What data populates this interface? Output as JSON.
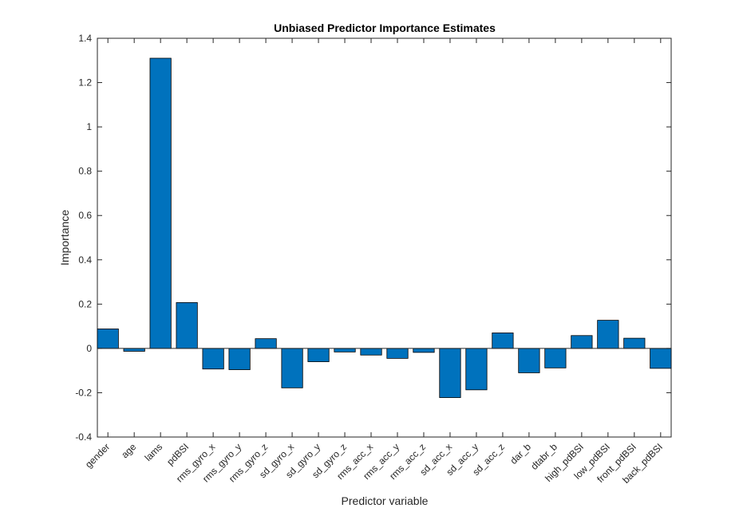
{
  "chart_data": {
    "type": "bar",
    "title": "Unbiased Predictor Importance Estimates",
    "xlabel": "Predictor variable",
    "ylabel": "Importance",
    "ylim": [
      -0.4,
      1.4
    ],
    "yticks": [
      -0.4,
      -0.2,
      0,
      0.2,
      0.4,
      0.6,
      0.8,
      1,
      1.2,
      1.4
    ],
    "ytick_labels": [
      "-0.4",
      "-0.2",
      "0",
      "0.2",
      "0.4",
      "0.6",
      "0.8",
      "1",
      "1.2",
      "1.4"
    ],
    "categories": [
      "gender",
      "age",
      "lams",
      "pdBSI",
      "rms_gyro_x",
      "rms_gyro_y",
      "rms_gyro_z",
      "sd_gyro_x",
      "sd_gyro_y",
      "sd_gyro_z",
      "rms_acc_x",
      "rms_acc_y",
      "rms_acc_z",
      "sd_acc_x",
      "sd_acc_y",
      "sd_acc_z",
      "dar_b",
      "dtabr_b",
      "high_pdBSI",
      "low_pdBSI",
      "front_pdBSI",
      "back_pdBSI"
    ],
    "values": [
      0.088,
      -0.013,
      1.31,
      0.207,
      -0.093,
      -0.096,
      0.044,
      -0.178,
      -0.06,
      -0.016,
      -0.03,
      -0.045,
      -0.018,
      -0.222,
      -0.187,
      0.07,
      -0.11,
      -0.088,
      0.058,
      0.127,
      0.046,
      -0.09
    ],
    "colors": {
      "bar": "#0072BD",
      "edge": "#000000",
      "axis": "#262626"
    },
    "grid": false,
    "legend": "none"
  }
}
